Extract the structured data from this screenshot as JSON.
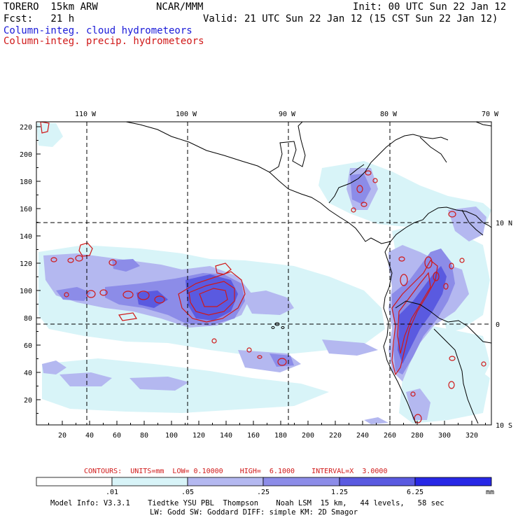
{
  "header": {
    "model": "TORERO  15km ARW",
    "center": "NCAR/MMM",
    "init": "Init: 00 UTC Sun 22 Jan 12",
    "fcst": "Fcst:   21 h",
    "valid": "Valid: 21 UTC Sun 22 Jan 12 (15 CST Sun 22 Jan 12)",
    "field1": "Column-integ. cloud hydrometeors",
    "field2": "Column-integ. precip. hydrometeors"
  },
  "map": {
    "top_lon_labels": [
      "110 W",
      "100 W",
      "90 W",
      "80 W",
      "70 W"
    ],
    "right_lat_labels": [
      "10 N",
      "0",
      "10 S"
    ],
    "y_ticks": [
      "220",
      "200",
      "180",
      "160",
      "140",
      "120",
      "100",
      "80",
      "60",
      "40",
      "20"
    ],
    "x_ticks": [
      "20",
      "40",
      "60",
      "80",
      "100",
      "120",
      "140",
      "160",
      "180",
      "200",
      "220",
      "240",
      "260",
      "280",
      "300",
      "320"
    ],
    "colors": {
      "fill_01": "#d8f4f8",
      "fill_05": "#b4b8f0",
      "fill_25": "#8c8ce8",
      "fill_125": "#5a5ae0",
      "fill_625": "#2828e6",
      "contour": "#d01818",
      "coast": "#000000"
    }
  },
  "contours_info": "CONTOURS:  UNITS=mm  LOW= 0.10000    HIGH=  6.1000    INTERVAL=X  3.0000",
  "colorbar": {
    "labels": [
      ".01",
      ".05",
      ".25",
      "1.25",
      "6.25"
    ],
    "units": "mm",
    "colors": [
      "#ffffff",
      "#d8f4f8",
      "#b4b8f0",
      "#8c8ce8",
      "#5a5ae0",
      "#2828e6"
    ]
  },
  "footer": {
    "line1": "Model Info: V3.3.1    Tiedtke YSU PBL  Thompson    Noah LSM  15 km,   44 levels,   58 sec",
    "line2": "LW: Godd SW: Goddard DIFF: simple KM: 2D Smagor"
  }
}
